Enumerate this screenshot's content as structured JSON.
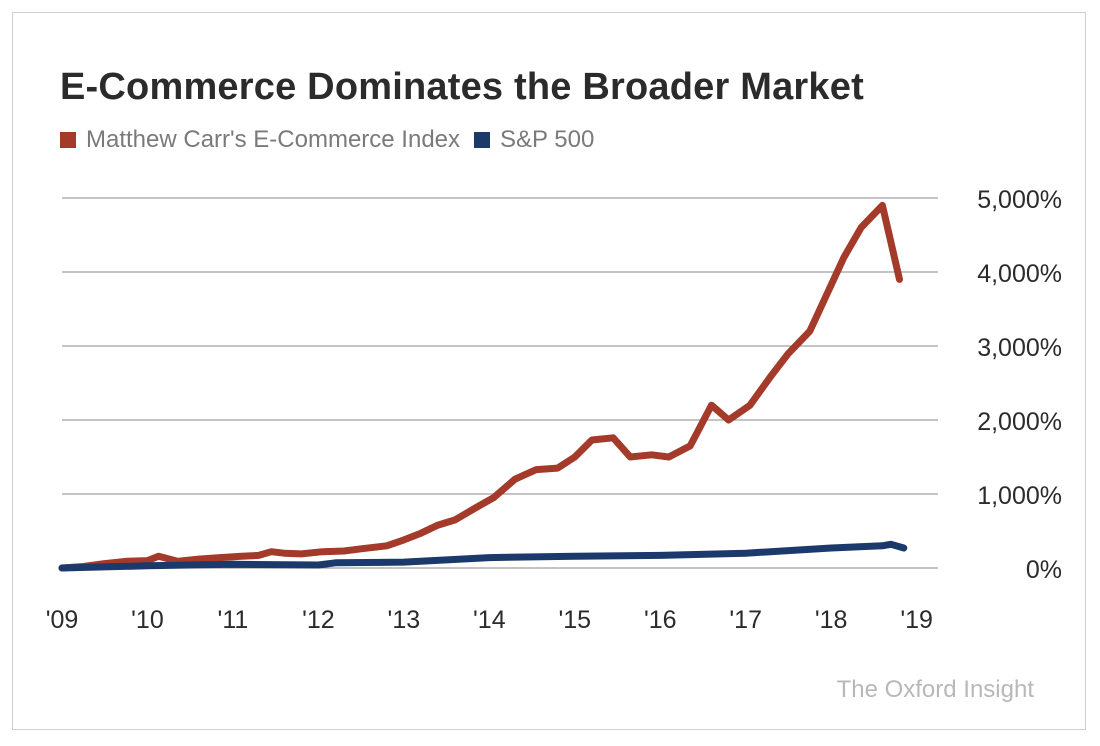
{
  "colors": {
    "index": "#a33a2a",
    "sp500": "#1b3a6b",
    "grid": "#8a8a8a",
    "text": "#2b2b2b"
  },
  "credit": "The Oxford Insight",
  "chart_data": {
    "type": "line",
    "title": "E-Commerce Dominates the Broader Market",
    "xlabel": "",
    "ylabel": "",
    "x_tick_labels": [
      "'09",
      "'10",
      "'11",
      "'12",
      "'13",
      "'14",
      "'15",
      "'16",
      "'17",
      "'18",
      "'19"
    ],
    "y_tick_labels": [
      "0%",
      "1,000%",
      "2,000%",
      "3,000%",
      "4,000%",
      "5,000%"
    ],
    "y_ticks": [
      0,
      1000,
      2000,
      3000,
      4000,
      5000
    ],
    "xlim": [
      2009,
      2019.25
    ],
    "ylim": [
      0,
      5000
    ],
    "grid": true,
    "legend_position": "top-left",
    "series": [
      {
        "name": "Matthew Carr's E-Commerce Index",
        "color": "#a33a2a",
        "points": [
          [
            2009.0,
            0
          ],
          [
            2009.25,
            20
          ],
          [
            2009.5,
            60
          ],
          [
            2009.75,
            90
          ],
          [
            2010.0,
            100
          ],
          [
            2010.13,
            160
          ],
          [
            2010.35,
            90
          ],
          [
            2010.6,
            120
          ],
          [
            2010.85,
            140
          ],
          [
            2011.1,
            160
          ],
          [
            2011.3,
            170
          ],
          [
            2011.45,
            220
          ],
          [
            2011.6,
            200
          ],
          [
            2011.8,
            190
          ],
          [
            2012.05,
            220
          ],
          [
            2012.3,
            230
          ],
          [
            2012.5,
            260
          ],
          [
            2012.8,
            300
          ],
          [
            2013.0,
            380
          ],
          [
            2013.2,
            470
          ],
          [
            2013.4,
            580
          ],
          [
            2013.6,
            650
          ],
          [
            2013.85,
            820
          ],
          [
            2014.05,
            950
          ],
          [
            2014.3,
            1200
          ],
          [
            2014.55,
            1330
          ],
          [
            2014.8,
            1350
          ],
          [
            2015.0,
            1500
          ],
          [
            2015.2,
            1730
          ],
          [
            2015.45,
            1760
          ],
          [
            2015.65,
            1500
          ],
          [
            2015.9,
            1530
          ],
          [
            2016.1,
            1500
          ],
          [
            2016.35,
            1650
          ],
          [
            2016.6,
            2200
          ],
          [
            2016.8,
            2000
          ],
          [
            2017.05,
            2200
          ],
          [
            2017.3,
            2600
          ],
          [
            2017.5,
            2900
          ],
          [
            2017.75,
            3200
          ],
          [
            2017.95,
            3700
          ],
          [
            2018.15,
            4200
          ],
          [
            2018.35,
            4600
          ],
          [
            2018.6,
            4900
          ],
          [
            2018.8,
            3900
          ]
        ]
      },
      {
        "name": "S&P 500",
        "color": "#1b3a6b",
        "points": [
          [
            2009.0,
            0
          ],
          [
            2010.0,
            30
          ],
          [
            2011.0,
            50
          ],
          [
            2012.0,
            40
          ],
          [
            2012.2,
            70
          ],
          [
            2013.0,
            80
          ],
          [
            2014.0,
            140
          ],
          [
            2015.0,
            160
          ],
          [
            2016.0,
            170
          ],
          [
            2017.0,
            200
          ],
          [
            2018.0,
            270
          ],
          [
            2018.6,
            300
          ],
          [
            2018.7,
            320
          ],
          [
            2018.85,
            270
          ]
        ]
      }
    ]
  }
}
